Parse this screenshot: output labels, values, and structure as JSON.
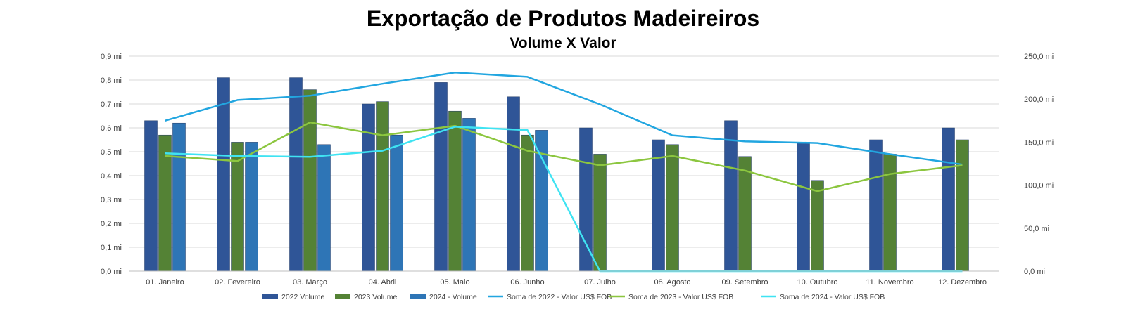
{
  "colors": {
    "vol2022": "#2f5597",
    "vol2023": "#548235",
    "vol2024": "#2e75b6",
    "val2022": "#22a6e0",
    "val2023": "#8cc63f",
    "val2024": "#3fe3f2",
    "grid": "#d9d9d9",
    "axis_text": "#404040"
  },
  "chart_data": {
    "type": "bar",
    "title": "Exportação de Produtos Madeireiros",
    "subtitle": "Volume X Valor",
    "categories": [
      "01. Janeiro",
      "02. Fevereiro",
      "03. Março",
      "04. Abril",
      "05. Maio",
      "06. Junho",
      "07. Julho",
      "08. Agosto",
      "09. Setembro",
      "10. Outubro",
      "11. Novembro",
      "12. Dezembro"
    ],
    "y_left": {
      "ylim": [
        0,
        0.9
      ],
      "ticks": [
        0,
        0.1,
        0.2,
        0.3,
        0.4,
        0.5,
        0.6,
        0.7,
        0.8,
        0.9
      ],
      "tick_labels": [
        "0,0 mi",
        "0,1 mi",
        "0,2 mi",
        "0,3 mi",
        "0,4 mi",
        "0,5 mi",
        "0,6 mi",
        "0,7 mi",
        "0,8 mi",
        "0,9 mi"
      ]
    },
    "y_right": {
      "ylim": [
        0,
        250
      ],
      "ticks": [
        0,
        50,
        100,
        150,
        200,
        250
      ],
      "tick_labels": [
        "0,0 mi",
        "50,0 mi",
        "100,0 mi",
        "150,0 mi",
        "200,0 mi",
        "250,0 mi"
      ]
    },
    "grid": true,
    "legend_position": "bottom",
    "bar_series": [
      {
        "name": "2022 Volume",
        "color_key": "vol2022",
        "axis": "left",
        "values": [
          0.63,
          0.81,
          0.81,
          0.7,
          0.79,
          0.73,
          0.6,
          0.55,
          0.63,
          0.54,
          0.55,
          0.6
        ]
      },
      {
        "name": "2023 Volume",
        "color_key": "vol2023",
        "axis": "left",
        "values": [
          0.57,
          0.54,
          0.76,
          0.71,
          0.67,
          0.57,
          0.49,
          0.53,
          0.48,
          0.38,
          0.49,
          0.55
        ]
      },
      {
        "name": "2024 - Volume",
        "color_key": "vol2024",
        "axis": "left",
        "values": [
          0.62,
          0.54,
          0.53,
          0.57,
          0.64,
          0.59,
          null,
          null,
          null,
          null,
          null,
          null
        ]
      }
    ],
    "line_series": [
      {
        "name": "Soma de 2022 - Valor US$ FOB",
        "color_key": "val2022",
        "axis": "right",
        "values": [
          175,
          199,
          204,
          218,
          231,
          226,
          194,
          158,
          151,
          149,
          136,
          124
        ]
      },
      {
        "name": "Soma de 2023 - Valor US$ FOB",
        "color_key": "val2023",
        "axis": "right",
        "values": [
          134,
          128,
          173,
          158,
          169,
          140,
          123,
          134,
          117,
          93,
          113,
          123
        ]
      },
      {
        "name": "Soma de 2024 - Valor US$ FOB",
        "color_key": "val2024",
        "axis": "right",
        "values": [
          137,
          134,
          133,
          140,
          168,
          164,
          0,
          0,
          0,
          0,
          0,
          0
        ]
      }
    ]
  }
}
